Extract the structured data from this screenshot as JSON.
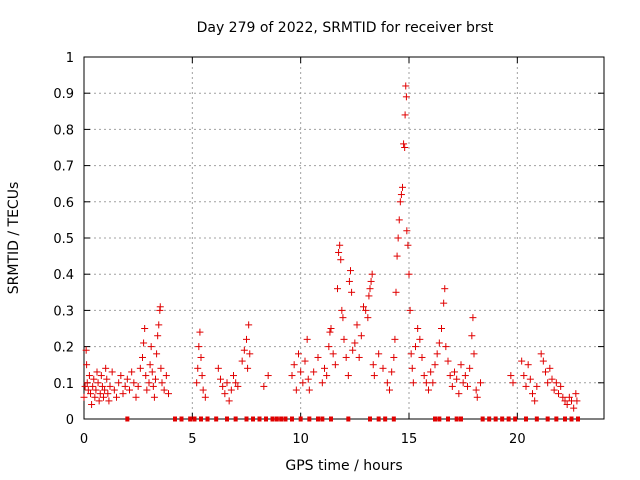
{
  "chart_data": {
    "type": "scatter",
    "title": "Day 279 of 2022, SRMTID for receiver brst",
    "xlabel": "GPS time / hours",
    "ylabel": "SRMTID / TECUs",
    "xlim": [
      0,
      24
    ],
    "ylim": [
      0,
      1
    ],
    "xticks": [
      0,
      5,
      10,
      15,
      20
    ],
    "xtick_labels": [
      "0",
      "5",
      "10",
      "15",
      "20"
    ],
    "yticks": [
      0,
      0.1,
      0.2,
      0.3,
      0.4,
      0.5,
      0.6,
      0.7,
      0.8,
      0.9,
      1
    ],
    "ytick_labels": [
      "0",
      "0.1",
      "0.2",
      "0.3",
      "0.4",
      "0.5",
      "0.6",
      "0.7",
      "0.8",
      "0.9",
      "1"
    ],
    "grid": true,
    "marker": "+",
    "series": [
      {
        "name": "SRMTID",
        "color": "#e00000",
        "points": [
          [
            0.0,
            0.06
          ],
          [
            0.05,
            0.09
          ],
          [
            0.1,
            0.19
          ],
          [
            0.12,
            0.15
          ],
          [
            0.15,
            0.1
          ],
          [
            0.2,
            0.08
          ],
          [
            0.25,
            0.12
          ],
          [
            0.3,
            0.07
          ],
          [
            0.35,
            0.04
          ],
          [
            0.4,
            0.09
          ],
          [
            0.45,
            0.11
          ],
          [
            0.5,
            0.06
          ],
          [
            0.55,
            0.08
          ],
          [
            0.6,
            0.13
          ],
          [
            0.65,
            0.1
          ],
          [
            0.7,
            0.05
          ],
          [
            0.75,
            0.07
          ],
          [
            0.8,
            0.12
          ],
          [
            0.85,
            0.09
          ],
          [
            0.9,
            0.06
          ],
          [
            0.95,
            0.08
          ],
          [
            1.0,
            0.14
          ],
          [
            1.05,
            0.11
          ],
          [
            1.1,
            0.07
          ],
          [
            1.15,
            0.05
          ],
          [
            1.2,
            0.09
          ],
          [
            1.3,
            0.13
          ],
          [
            1.4,
            0.08
          ],
          [
            1.5,
            0.06
          ],
          [
            1.6,
            0.1
          ],
          [
            1.7,
            0.12
          ],
          [
            1.8,
            0.07
          ],
          [
            1.9,
            0.09
          ],
          [
            2.0,
            0.11
          ],
          [
            2.1,
            0.08
          ],
          [
            2.2,
            0.13
          ],
          [
            2.3,
            0.1
          ],
          [
            2.4,
            0.06
          ],
          [
            2.5,
            0.09
          ],
          [
            2.6,
            0.14
          ],
          [
            2.7,
            0.17
          ],
          [
            2.75,
            0.21
          ],
          [
            2.8,
            0.25
          ],
          [
            2.85,
            0.12
          ],
          [
            2.9,
            0.08
          ],
          [
            3.0,
            0.1
          ],
          [
            3.05,
            0.15
          ],
          [
            3.1,
            0.2
          ],
          [
            3.15,
            0.13
          ],
          [
            3.2,
            0.09
          ],
          [
            3.25,
            0.06
          ],
          [
            3.3,
            0.11
          ],
          [
            3.35,
            0.18
          ],
          [
            3.4,
            0.23
          ],
          [
            3.45,
            0.26
          ],
          [
            3.5,
            0.3
          ],
          [
            3.52,
            0.31
          ],
          [
            3.55,
            0.14
          ],
          [
            3.6,
            0.1
          ],
          [
            3.7,
            0.08
          ],
          [
            3.8,
            0.12
          ],
          [
            3.9,
            0.07
          ],
          [
            5.2,
            0.1
          ],
          [
            5.25,
            0.14
          ],
          [
            5.3,
            0.2
          ],
          [
            5.35,
            0.24
          ],
          [
            5.4,
            0.17
          ],
          [
            5.45,
            0.12
          ],
          [
            5.5,
            0.08
          ],
          [
            5.6,
            0.06
          ],
          [
            6.2,
            0.14
          ],
          [
            6.3,
            0.11
          ],
          [
            6.4,
            0.09
          ],
          [
            6.5,
            0.07
          ],
          [
            6.6,
            0.1
          ],
          [
            6.7,
            0.05
          ],
          [
            6.8,
            0.08
          ],
          [
            6.9,
            0.12
          ],
          [
            7.0,
            0.1
          ],
          [
            7.1,
            0.09
          ],
          [
            7.3,
            0.16
          ],
          [
            7.4,
            0.19
          ],
          [
            7.5,
            0.22
          ],
          [
            7.6,
            0.26
          ],
          [
            7.55,
            0.14
          ],
          [
            7.65,
            0.18
          ],
          [
            8.3,
            0.09
          ],
          [
            8.5,
            0.12
          ],
          [
            9.6,
            0.12
          ],
          [
            9.7,
            0.15
          ],
          [
            9.8,
            0.08
          ],
          [
            9.9,
            0.18
          ],
          [
            10.0,
            0.13
          ],
          [
            10.1,
            0.1
          ],
          [
            10.2,
            0.16
          ],
          [
            10.3,
            0.22
          ],
          [
            10.35,
            0.11
          ],
          [
            10.4,
            0.08
          ],
          [
            10.6,
            0.13
          ],
          [
            10.8,
            0.17
          ],
          [
            11.0,
            0.1
          ],
          [
            11.1,
            0.14
          ],
          [
            11.2,
            0.12
          ],
          [
            11.3,
            0.2
          ],
          [
            11.35,
            0.24
          ],
          [
            11.4,
            0.25
          ],
          [
            11.5,
            0.18
          ],
          [
            11.6,
            0.15
          ],
          [
            11.7,
            0.36
          ],
          [
            11.75,
            0.46
          ],
          [
            11.8,
            0.48
          ],
          [
            11.85,
            0.44
          ],
          [
            11.9,
            0.3
          ],
          [
            11.95,
            0.28
          ],
          [
            12.0,
            0.22
          ],
          [
            12.1,
            0.17
          ],
          [
            12.2,
            0.12
          ],
          [
            12.25,
            0.38
          ],
          [
            12.3,
            0.41
          ],
          [
            12.35,
            0.35
          ],
          [
            12.4,
            0.19
          ],
          [
            12.5,
            0.21
          ],
          [
            12.6,
            0.26
          ],
          [
            12.7,
            0.17
          ],
          [
            12.8,
            0.23
          ],
          [
            12.9,
            0.31
          ],
          [
            13.0,
            0.3
          ],
          [
            13.1,
            0.28
          ],
          [
            13.15,
            0.34
          ],
          [
            13.2,
            0.36
          ],
          [
            13.25,
            0.38
          ],
          [
            13.3,
            0.4
          ],
          [
            13.35,
            0.15
          ],
          [
            13.4,
            0.12
          ],
          [
            13.6,
            0.18
          ],
          [
            13.8,
            0.14
          ],
          [
            14.0,
            0.1
          ],
          [
            14.1,
            0.08
          ],
          [
            14.2,
            0.13
          ],
          [
            14.3,
            0.17
          ],
          [
            14.35,
            0.22
          ],
          [
            14.4,
            0.35
          ],
          [
            14.45,
            0.45
          ],
          [
            14.5,
            0.5
          ],
          [
            14.55,
            0.55
          ],
          [
            14.6,
            0.6
          ],
          [
            14.65,
            0.62
          ],
          [
            14.7,
            0.64
          ],
          [
            14.75,
            0.76
          ],
          [
            14.8,
            0.75
          ],
          [
            14.82,
            0.84
          ],
          [
            14.85,
            0.92
          ],
          [
            14.88,
            0.89
          ],
          [
            14.9,
            0.52
          ],
          [
            14.95,
            0.48
          ],
          [
            15.0,
            0.4
          ],
          [
            15.05,
            0.3
          ],
          [
            15.1,
            0.18
          ],
          [
            15.15,
            0.14
          ],
          [
            15.2,
            0.1
          ],
          [
            15.3,
            0.2
          ],
          [
            15.4,
            0.25
          ],
          [
            15.5,
            0.22
          ],
          [
            15.6,
            0.17
          ],
          [
            15.7,
            0.12
          ],
          [
            15.8,
            0.1
          ],
          [
            15.9,
            0.08
          ],
          [
            16.0,
            0.13
          ],
          [
            16.1,
            0.1
          ],
          [
            16.2,
            0.15
          ],
          [
            16.3,
            0.18
          ],
          [
            16.4,
            0.21
          ],
          [
            16.5,
            0.25
          ],
          [
            16.6,
            0.32
          ],
          [
            16.65,
            0.36
          ],
          [
            16.7,
            0.2
          ],
          [
            16.8,
            0.16
          ],
          [
            16.9,
            0.12
          ],
          [
            17.0,
            0.09
          ],
          [
            17.1,
            0.13
          ],
          [
            17.2,
            0.11
          ],
          [
            17.3,
            0.07
          ],
          [
            17.4,
            0.15
          ],
          [
            17.5,
            0.1
          ],
          [
            17.6,
            0.12
          ],
          [
            17.7,
            0.09
          ],
          [
            17.8,
            0.14
          ],
          [
            17.9,
            0.23
          ],
          [
            17.95,
            0.28
          ],
          [
            18.0,
            0.18
          ],
          [
            18.1,
            0.08
          ],
          [
            18.15,
            0.06
          ],
          [
            18.3,
            0.1
          ],
          [
            19.7,
            0.12
          ],
          [
            19.8,
            0.1
          ],
          [
            20.2,
            0.16
          ],
          [
            20.3,
            0.12
          ],
          [
            20.4,
            0.09
          ],
          [
            20.5,
            0.15
          ],
          [
            20.6,
            0.11
          ],
          [
            20.7,
            0.07
          ],
          [
            20.8,
            0.05
          ],
          [
            20.9,
            0.09
          ],
          [
            21.1,
            0.18
          ],
          [
            21.2,
            0.16
          ],
          [
            21.3,
            0.13
          ],
          [
            21.4,
            0.1
          ],
          [
            21.5,
            0.14
          ],
          [
            21.6,
            0.11
          ],
          [
            21.7,
            0.08
          ],
          [
            21.8,
            0.1
          ],
          [
            21.9,
            0.07
          ],
          [
            22.0,
            0.09
          ],
          [
            22.1,
            0.06
          ],
          [
            22.2,
            0.05
          ],
          [
            22.3,
            0.04
          ],
          [
            22.4,
            0.06
          ],
          [
            22.5,
            0.05
          ],
          [
            22.6,
            0.03
          ],
          [
            22.7,
            0.07
          ],
          [
            22.75,
            0.05
          ]
        ]
      }
    ],
    "zero_marks": [
      2.0,
      4.2,
      4.5,
      4.9,
      5.1,
      5.4,
      5.7,
      6.1,
      6.6,
      7.0,
      7.5,
      7.8,
      8.1,
      8.4,
      8.7,
      8.9,
      9.1,
      9.3,
      9.6,
      10.0,
      10.4,
      10.8,
      11.0,
      11.4,
      12.2,
      13.2,
      13.6,
      13.9,
      14.3,
      16.2,
      16.4,
      16.8,
      17.2,
      17.4,
      18.4,
      18.7,
      19.0,
      19.3,
      19.6,
      19.9,
      20.4,
      20.9,
      21.4,
      21.8,
      22.2,
      22.5,
      22.8
    ]
  }
}
